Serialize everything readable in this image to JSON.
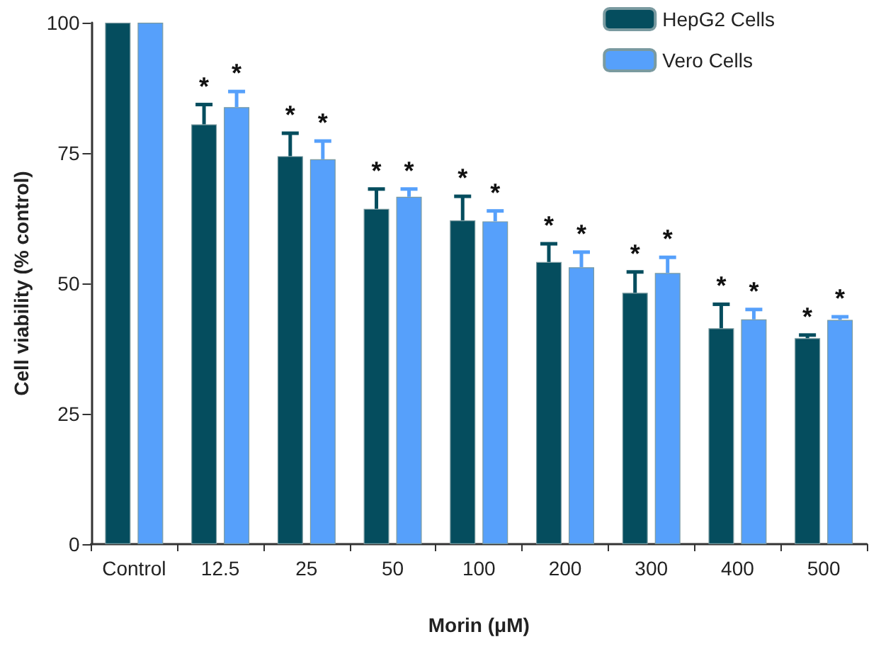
{
  "chart_data": {
    "type": "bar",
    "xlabel": "Morin (μM)",
    "ylabel": "Cell viability (% control)",
    "categories": [
      "Control",
      "12.5",
      "25",
      "50",
      "100",
      "200",
      "300",
      "400",
      "500"
    ],
    "series": [
      {
        "name": "HepG2 Cells",
        "color": "#054d5e",
        "values": [
          100,
          80.5,
          74.4,
          64.3,
          62.1,
          54.1,
          48.2,
          41.4,
          39.5
        ],
        "errors": [
          null,
          3.8,
          4.4,
          3.8,
          4.6,
          3.5,
          4.0,
          4.6,
          0.6
        ],
        "value_labels": [
          null,
          "*",
          "*",
          "*",
          "*",
          "*",
          "*",
          "*",
          "*"
        ]
      },
      {
        "name": "Vero Cells",
        "color": "#56a0fb",
        "values": [
          100,
          83.8,
          73.8,
          66.6,
          61.9,
          53.1,
          52.0,
          43.1,
          43.0
        ],
        "errors": [
          null,
          3.0,
          3.5,
          1.5,
          2.0,
          2.9,
          3.0,
          1.9,
          0.6
        ],
        "value_labels": [
          null,
          "*",
          "*",
          "*",
          "*",
          "*",
          "*",
          "*",
          "*"
        ]
      }
    ],
    "ylim": [
      0,
      100
    ],
    "yticks": [
      0,
      25,
      50,
      75,
      100
    ],
    "grid": false,
    "legend": "top right"
  }
}
